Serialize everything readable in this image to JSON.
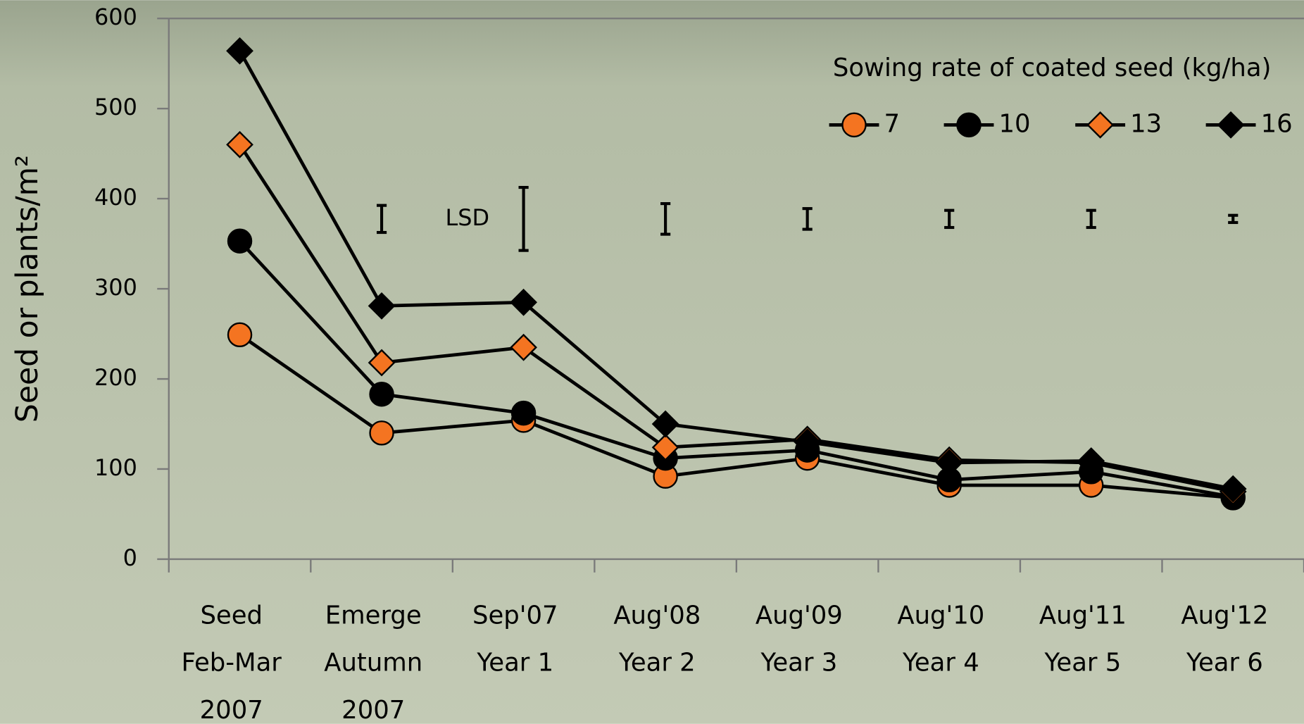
{
  "chart_data": {
    "type": "line",
    "y_label": "Seed or plants/m²",
    "categories": [
      [
        "Seed",
        "Feb-Mar",
        "2007"
      ],
      [
        "Emerge",
        "Autumn",
        "2007"
      ],
      [
        "Sep'07",
        "Year 1"
      ],
      [
        "Aug'08",
        "Year 2"
      ],
      [
        "Aug'09",
        "Year 3"
      ],
      [
        "Aug'10",
        "Year 4"
      ],
      [
        "Aug'11",
        "Year 5"
      ],
      [
        "Aug'12",
        "Year 6"
      ]
    ],
    "ylim": [
      0,
      600
    ],
    "yticks": [
      0,
      100,
      200,
      300,
      400,
      500,
      600
    ],
    "legend_title": "Sowing rate of coated seed (kg/ha)",
    "series": [
      {
        "name": "7",
        "color": "#f47421",
        "marker": "circle",
        "values": [
          249,
          140,
          154,
          92,
          112,
          82,
          82,
          68
        ]
      },
      {
        "name": "10",
        "color": "#000000",
        "marker": "circle",
        "values": [
          353,
          183,
          162,
          112,
          121,
          88,
          97,
          69
        ]
      },
      {
        "name": "13",
        "color": "#f47421",
        "marker": "diamond",
        "values": [
          460,
          218,
          235,
          124,
          133,
          110,
          107,
          75
        ]
      },
      {
        "name": "16",
        "color": "#000000",
        "marker": "diamond",
        "values": [
          564,
          281,
          285,
          150,
          130,
          107,
          109,
          78
        ]
      }
    ],
    "lsd": {
      "label": "LSD",
      "values": [
        null,
        30,
        70,
        34,
        23,
        19,
        19,
        8
      ]
    }
  }
}
